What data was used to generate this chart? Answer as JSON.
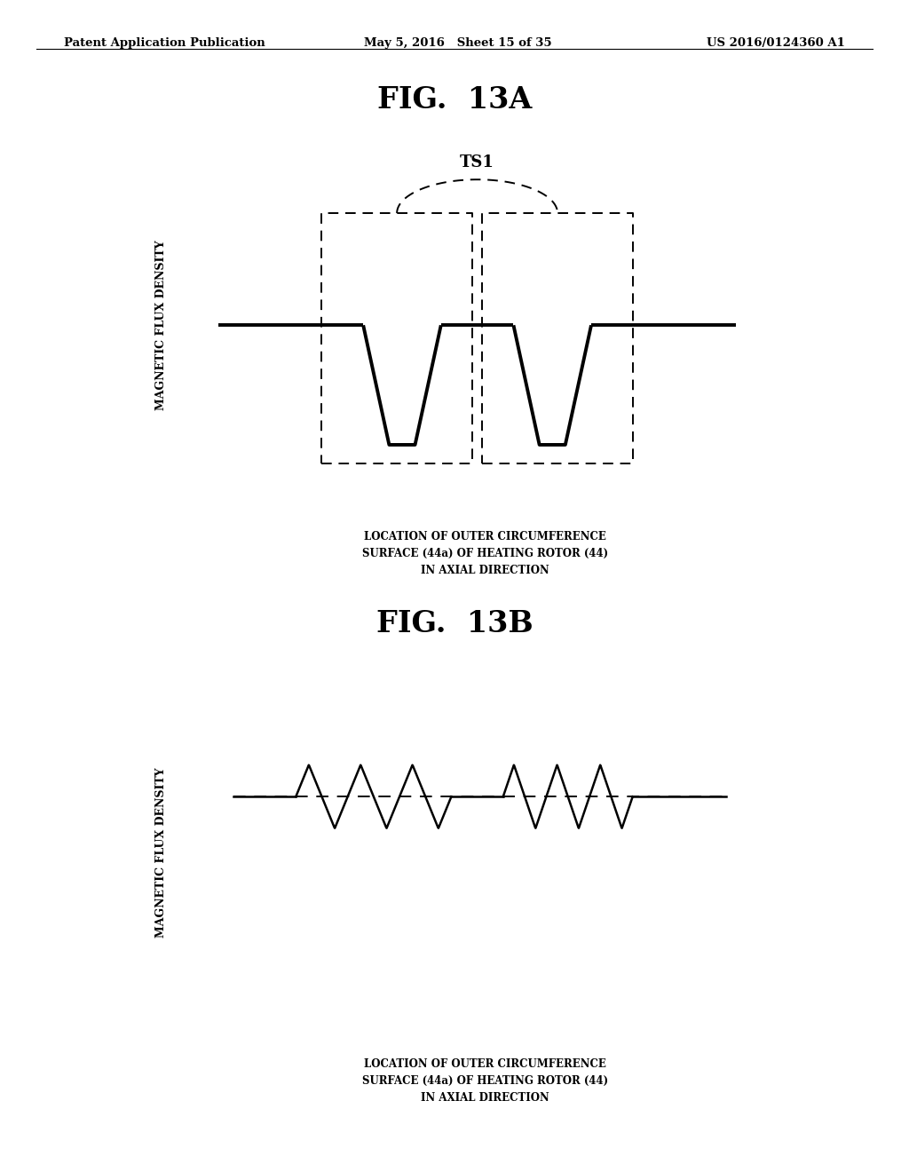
{
  "header_left": "Patent Application Publication",
  "header_mid": "May 5, 2016   Sheet 15 of 35",
  "header_right": "US 2016/0124360 A1",
  "fig1_title": "FIG.  13A",
  "fig2_title": "FIG.  13B",
  "ylabel": "MAGNETIC FLUX DENSITY",
  "xlabel_line1": "LOCATION OF OUTER CIRCUMFERENCE",
  "xlabel_line2": "SURFACE (44a) OF HEATING ROTOR (44)",
  "xlabel_line3": "IN AXIAL DIRECTION",
  "ts1_label": "TS1",
  "background_color": "#ffffff",
  "text_color": "#000000"
}
